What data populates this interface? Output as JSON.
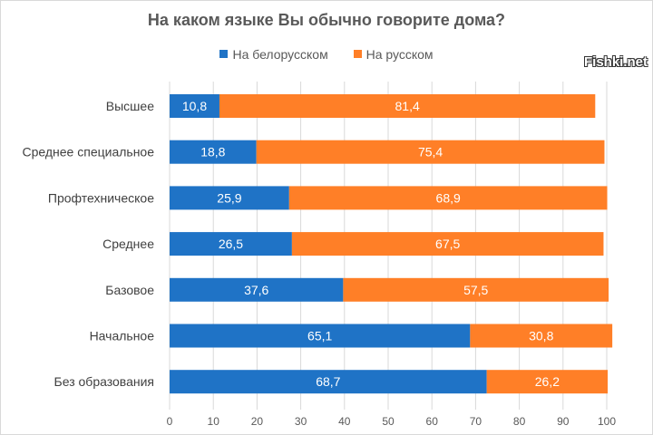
{
  "chart_data": {
    "type": "bar",
    "stacked": true,
    "orientation": "horizontal",
    "title": "На каком языке Вы обычно говорите дома?",
    "categories": [
      "Высшее",
      "Среднее  специальное",
      "Профтехническое",
      "Среднее",
      "Базовое",
      "Начальное",
      "Без образования"
    ],
    "series": [
      {
        "name": "На белорусском",
        "color": "#1F73C6",
        "values": [
          10.8,
          18.8,
          25.9,
          26.5,
          37.6,
          65.1,
          68.7
        ],
        "labels": [
          "10,8",
          "18,8",
          "25,9",
          "26,5",
          "37,6",
          "65,1",
          "68,7"
        ]
      },
      {
        "name": "На русском",
        "color": "#FF7F27",
        "values": [
          81.4,
          75.4,
          68.9,
          67.5,
          57.5,
          30.8,
          26.2
        ],
        "labels": [
          "81,4",
          "75,4",
          "68,9",
          "67,5",
          "57,5",
          "30,8",
          "26,2"
        ]
      }
    ],
    "xticks": [
      "0",
      "10",
      "20",
      "30",
      "40",
      "50",
      "60",
      "70",
      "80",
      "90",
      "100"
    ],
    "xlim": [
      0,
      100
    ],
    "grid": true,
    "legend": "top"
  },
  "watermark": "Fishki.net"
}
